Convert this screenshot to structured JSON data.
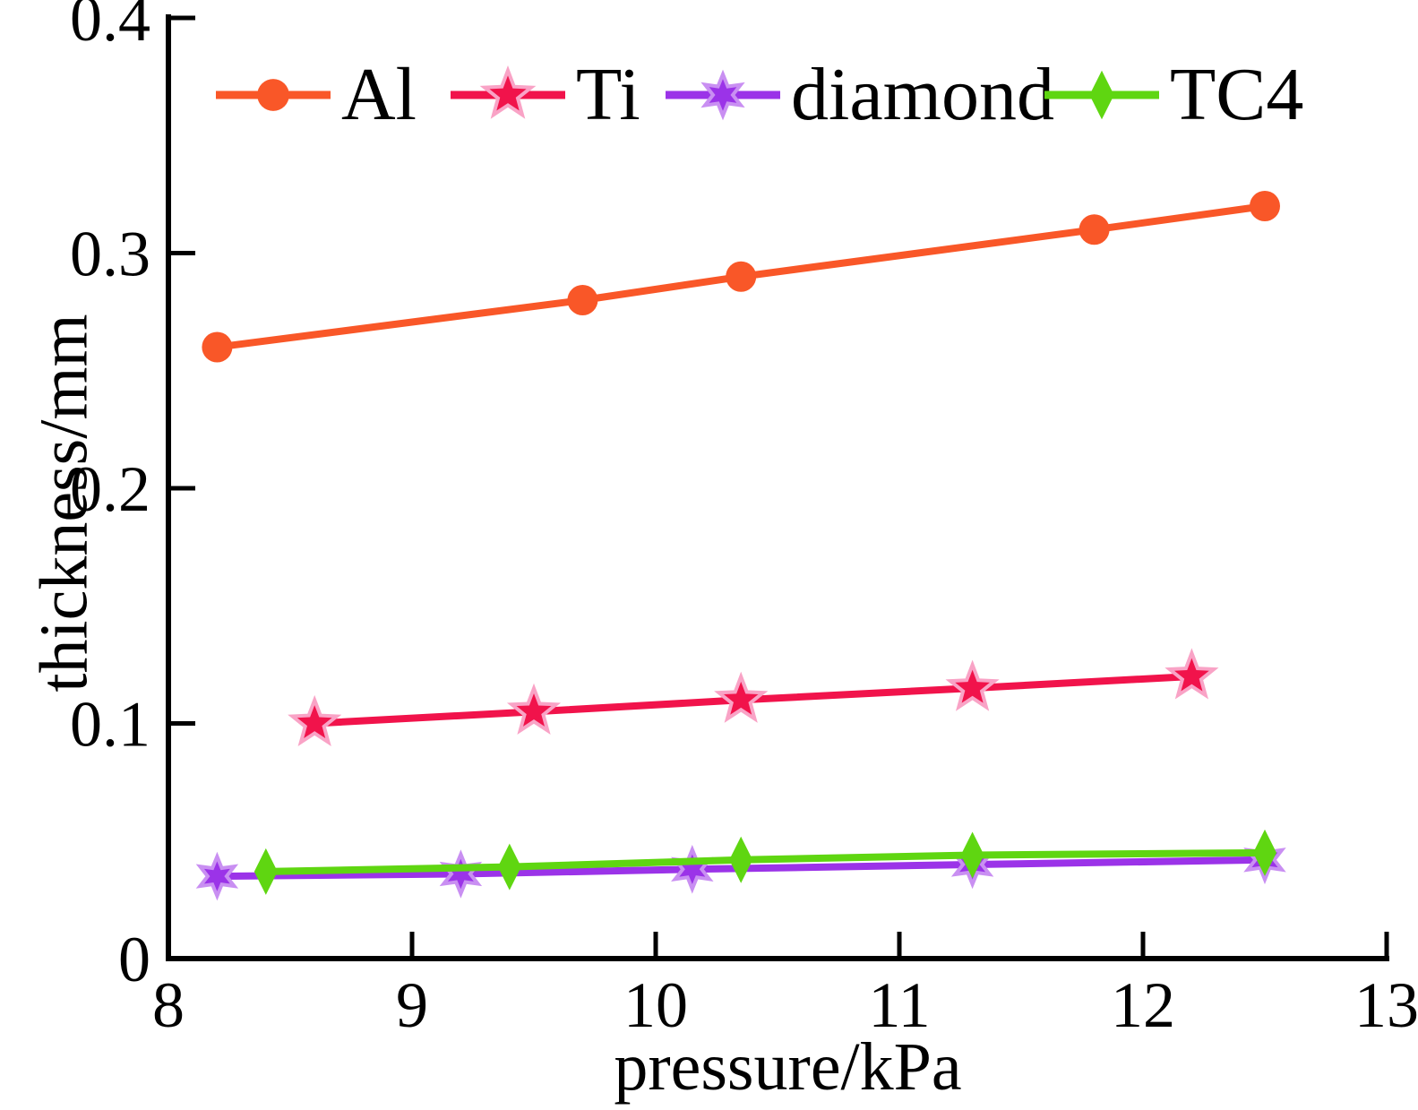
{
  "figure": {
    "background": "#ffffff",
    "text_color": "#000000"
  },
  "chart_data": {
    "type": "line",
    "title": "",
    "xlabel": "pressure/kPa",
    "ylabel": "thickness/mm",
    "xlim": [
      8,
      13
    ],
    "ylim": [
      0,
      0.4
    ],
    "x_ticks": [
      8,
      9,
      10,
      11,
      12,
      13
    ],
    "x_tick_labels": [
      "8",
      "9",
      "10",
      "11",
      "12",
      "13"
    ],
    "y_ticks": [
      0.4,
      0.3,
      0.2,
      0.1,
      0
    ],
    "y_tick_labels": [
      "0.4",
      "0.3",
      "0.2",
      "0.1",
      "0"
    ],
    "grid": false,
    "legend_position": "top inside, horizontal row",
    "series": [
      {
        "name": "Al",
        "color": "#F95728",
        "edge": "#F95728",
        "marker": "circle",
        "x": [
          8.2,
          9.7,
          10.35,
          11.8,
          12.5
        ],
        "y": [
          0.26,
          0.28,
          0.29,
          0.31,
          0.32
        ]
      },
      {
        "name": "Ti",
        "color": "#F1134B",
        "edge": "#F9A3C6",
        "marker": "star5",
        "x": [
          8.6,
          9.5,
          10.35,
          11.3,
          12.2
        ],
        "y": [
          0.1,
          0.105,
          0.11,
          0.115,
          0.12
        ]
      },
      {
        "name": "diamond",
        "color": "#9B33E8",
        "edge": "#C98FF2",
        "marker": "star6",
        "x": [
          8.2,
          9.2,
          10.15,
          11.3,
          12.5
        ],
        "y": [
          0.035,
          0.036,
          0.038,
          0.04,
          0.042
        ]
      },
      {
        "name": "TC4",
        "color": "#5FD611",
        "edge": "#5FD611",
        "marker": "diamond",
        "x": [
          8.4,
          9.4,
          10.35,
          11.3,
          12.5
        ],
        "y": [
          0.037,
          0.039,
          0.042,
          0.044,
          0.045
        ]
      }
    ]
  }
}
